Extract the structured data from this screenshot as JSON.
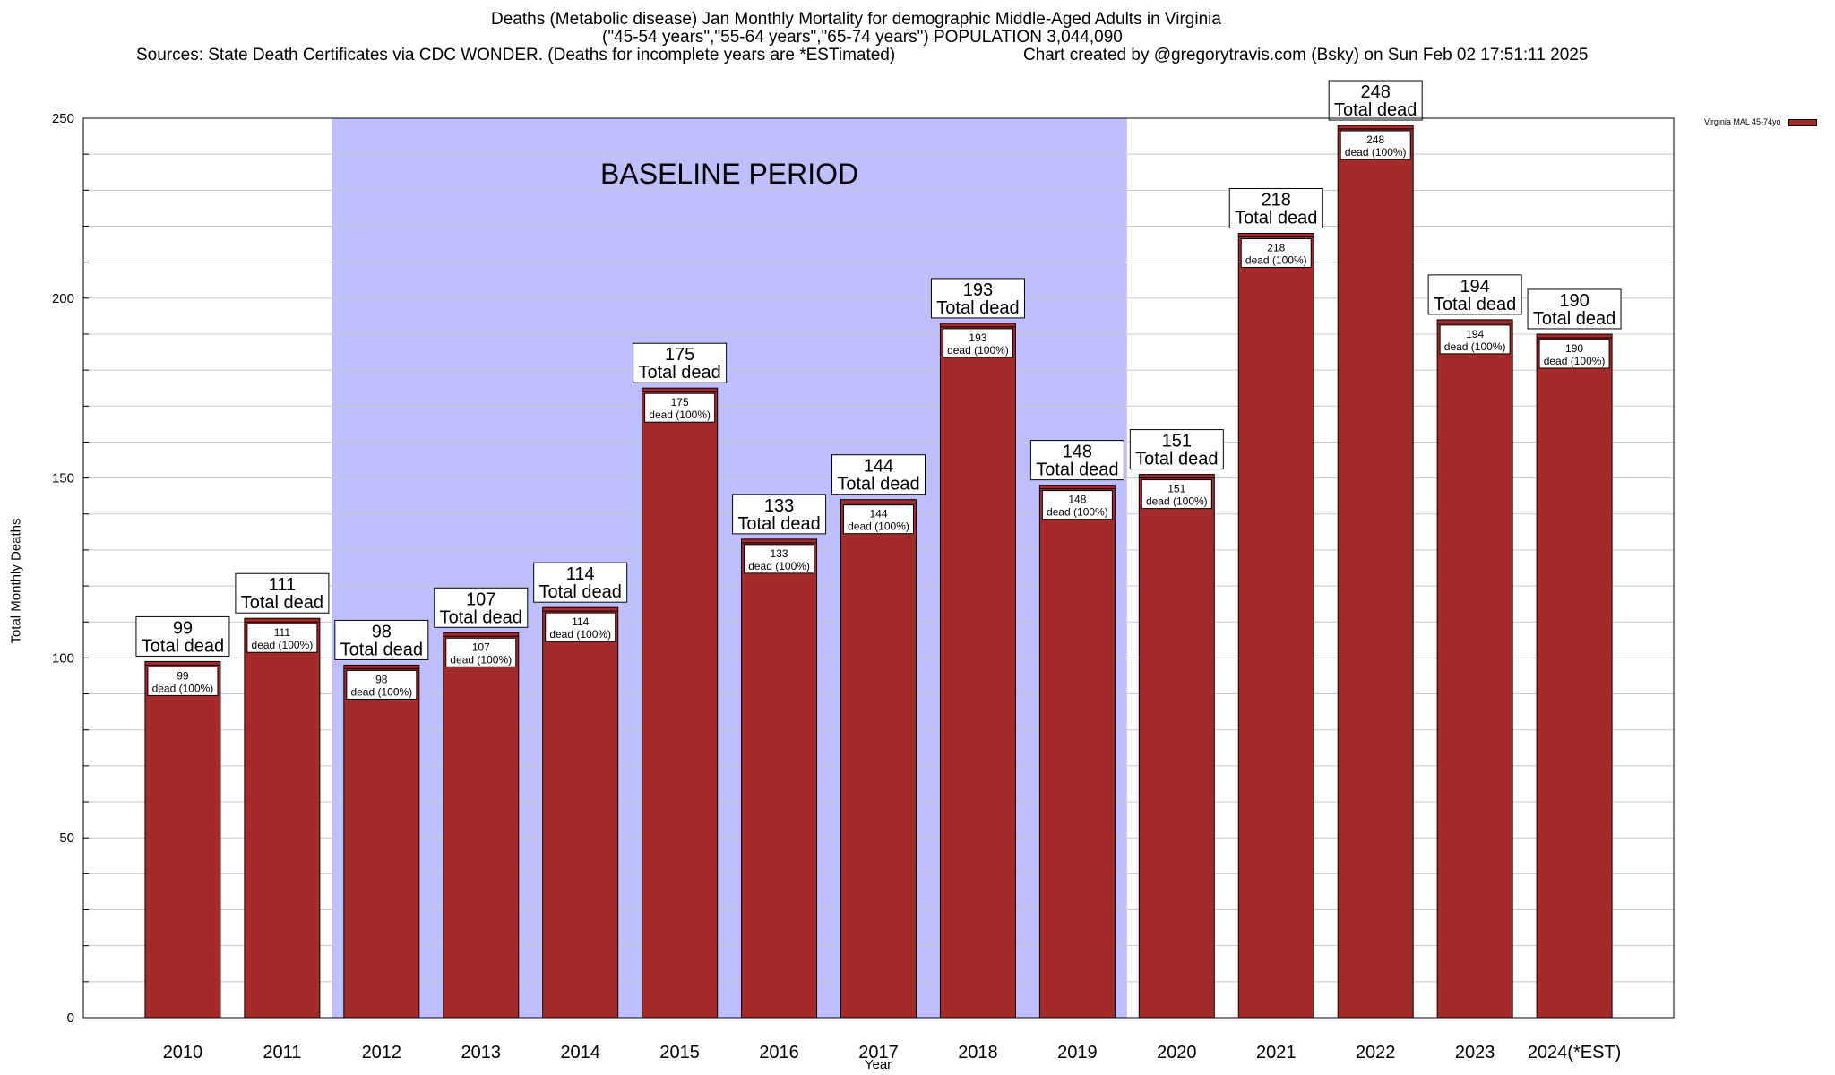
{
  "header": {
    "title_line1": "Deaths (Metabolic disease) Jan Monthly Mortality for demographic Middle-Aged Adults in Virginia",
    "title_line2": "(\"45-54 years\",\"55-64 years\",\"65-74 years\") POPULATION 3,044,090",
    "sources": "Sources: State Death Certificates via CDC WONDER. (Deaths for incomplete years are *ESTimated)",
    "credit": "Chart created by @gregorytravis.com (Bsky) on Sun Feb 02 17:51:11 2025"
  },
  "chart_data": {
    "type": "bar",
    "xlabel": "Year",
    "ylabel": "Total Monthly Deaths",
    "ylim": [
      0,
      250
    ],
    "y_ticks": [
      0,
      50,
      100,
      150,
      200,
      250
    ],
    "grid": true,
    "legend_position": "top-right, outside plot",
    "categories": [
      "2010",
      "2011",
      "2012",
      "2013",
      "2014",
      "2015",
      "2016",
      "2017",
      "2018",
      "2019",
      "2020",
      "2021",
      "2022",
      "2023",
      "2024(*EST)"
    ],
    "series": [
      {
        "name": "Virginia MAL 45-74yo",
        "color": "#a52a2a",
        "values": [
          99,
          111,
          98,
          107,
          114,
          175,
          133,
          144,
          193,
          148,
          151,
          218,
          248,
          194,
          190
        ]
      }
    ],
    "top_label_suffix": "Total dead",
    "inner_label_suffix": "dead (100%)",
    "baseline_period": {
      "label": "BASELINE PERIOD",
      "start_category": "2012",
      "end_category": "2019",
      "color": "#bfbfff"
    }
  }
}
